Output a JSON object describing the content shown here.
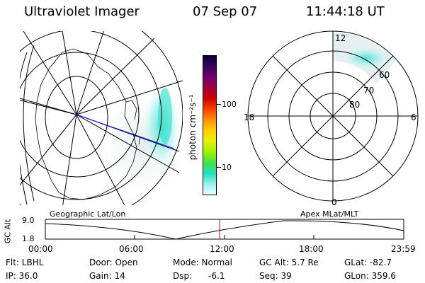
{
  "header": {
    "title": "Ultraviolet Imager",
    "date": "07 Sep 07",
    "time": "11:44:18 UT"
  },
  "colorbar": {
    "unit_label": "photon cm⁻²s⁻¹",
    "tick_labels": [
      "100",
      "10"
    ],
    "colors": [
      "#000033",
      "#3a0060",
      "#700070",
      "#a00040",
      "#d00000",
      "#ff4000",
      "#ff9000",
      "#ffd000",
      "#e8f000",
      "#a0f000",
      "#40e050",
      "#20e0c0",
      "#a0f0f0",
      "#e8ffff"
    ]
  },
  "polar": {
    "mlt_labels": [
      "12",
      "18",
      "6",
      "0"
    ],
    "lat_labels": [
      "60",
      "70",
      "80"
    ]
  },
  "timeline": {
    "left_label": "Geographic Lat/Lon",
    "right_label": "Apex MLat/MLT",
    "axis_title": "GC Alt",
    "y_labels": [
      "9.0",
      "1.8"
    ],
    "x_labels": [
      "00:00",
      "06:00",
      "12:00",
      "18:00",
      "23:59"
    ],
    "current_marker_color": "#d00000"
  },
  "info": {
    "filter": "Flt: LBHL",
    "door": "Door: Open",
    "mode": "Mode: Normal",
    "gc_alt": "GC Alt: 5.7 Re",
    "glat": "GLat: -82.7",
    "ip": "IP: 36.0",
    "gain": "Gain: 14",
    "dsp_label": "Dsp:",
    "dsp_value": "-6.1",
    "seq": "Seq: 39",
    "glon": "GLon: 359.6"
  }
}
